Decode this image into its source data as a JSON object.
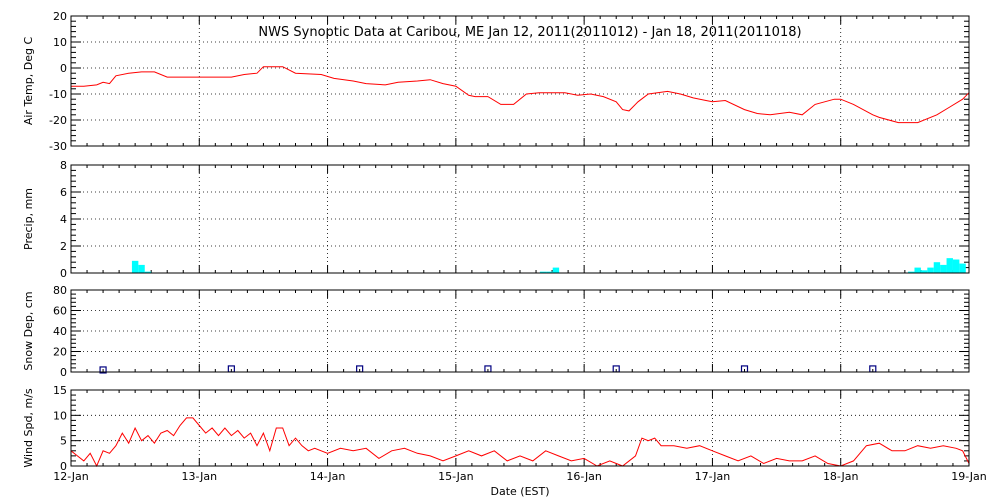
{
  "title": "NWS Synoptic Data at Caribou, ME   Jan 12, 2011(2011012) - Jan 18, 2011(2011018)",
  "xlabel": "Date (EST)",
  "x_ticks": [
    "12-Jan",
    "13-Jan",
    "14-Jan",
    "15-Jan",
    "16-Jan",
    "17-Jan",
    "18-Jan",
    "19-Jan"
  ],
  "colors": {
    "temp": "#ff0000",
    "precip": "#00ffff",
    "snow": "#000080",
    "wind": "#ff0000",
    "grid": "#000000"
  },
  "chart_data": [
    {
      "type": "line",
      "ylabel": "Air Temp, Deg C",
      "ylim": [
        -30,
        20
      ],
      "yticks": [
        -30,
        -20,
        -10,
        0,
        10,
        20
      ],
      "grid": true,
      "series": [
        {
          "x": [
            0,
            0.1,
            0.2,
            0.25,
            0.3,
            0.35,
            0.45,
            0.55,
            0.65,
            0.75,
            0.9,
            1.1,
            1.25,
            1.35,
            1.45,
            1.5,
            1.6,
            1.65,
            1.75,
            1.95,
            2.05,
            2.2,
            2.3,
            2.45,
            2.55,
            2.7,
            2.8,
            2.9,
            3.0,
            3.1,
            3.15,
            3.25,
            3.35,
            3.45,
            3.55,
            3.65,
            3.85,
            3.95,
            4.05,
            4.15,
            4.25,
            4.3,
            4.35,
            4.42,
            4.5,
            4.65,
            4.75,
            4.85,
            4.95,
            5.0,
            5.1,
            5.25,
            5.35,
            5.45,
            5.6,
            5.7,
            5.8,
            5.95,
            6.0,
            6.1,
            6.25,
            6.3,
            6.45,
            6.6,
            6.75,
            6.85,
            6.95,
            7.0
          ],
          "y": [
            -7,
            -7,
            -6.5,
            -5.5,
            -6,
            -3,
            -2,
            -1.5,
            -1.5,
            -3.5,
            -3.5,
            -3.5,
            -3.5,
            -2.5,
            -2,
            0.5,
            0.5,
            0.5,
            -2,
            -2.5,
            -4,
            -5,
            -6,
            -6.5,
            -5.5,
            -5,
            -4.5,
            -6,
            -7,
            -10.5,
            -11,
            -11,
            -14,
            -14,
            -10,
            -9.5,
            -9.5,
            -10.5,
            -10,
            -11,
            -13,
            -16,
            -16.5,
            -13,
            -10,
            -9,
            -10,
            -11.5,
            -12.5,
            -13,
            -12.5,
            -16,
            -17.5,
            -18,
            -17,
            -18,
            -14,
            -12,
            -12,
            -14,
            -18,
            -19,
            -21,
            -21,
            -18,
            -15,
            -12,
            -9.5
          ]
        }
      ]
    },
    {
      "type": "bar",
      "ylabel": "Precip, mm",
      "ylim": [
        0,
        8
      ],
      "yticks": [
        0,
        2,
        4,
        6,
        8
      ],
      "grid": true,
      "series": [
        {
          "x": [
            0.5,
            0.55,
            0.6,
            3.68,
            3.73,
            3.78,
            6.55,
            6.6,
            6.65,
            6.7,
            6.75,
            6.8,
            6.85,
            6.9,
            6.95
          ],
          "values": [
            0.9,
            0.6,
            0.1,
            0.1,
            0.1,
            0.4,
            0.1,
            0.4,
            0.2,
            0.4,
            0.8,
            0.6,
            1.1,
            1.0,
            0.7
          ]
        }
      ]
    },
    {
      "type": "scatter",
      "ylabel": "Snow Dep, cm",
      "ylim": [
        0,
        80
      ],
      "yticks": [
        0,
        20,
        40,
        60,
        80
      ],
      "grid": true,
      "series": [
        {
          "x": [
            0.25,
            1.25,
            2.25,
            3.25,
            4.25,
            5.25,
            6.25
          ],
          "y": [
            2,
            3,
            3,
            3,
            3,
            3,
            3
          ]
        }
      ]
    },
    {
      "type": "line",
      "ylabel": "Wind Spd, m/s",
      "ylim": [
        0,
        15
      ],
      "yticks": [
        0,
        5,
        10,
        15
      ],
      "grid": true,
      "series": [
        {
          "x": [
            0,
            0.05,
            0.1,
            0.15,
            0.2,
            0.25,
            0.3,
            0.35,
            0.4,
            0.45,
            0.5,
            0.55,
            0.6,
            0.65,
            0.7,
            0.75,
            0.8,
            0.85,
            0.9,
            0.95,
            1.0,
            1.05,
            1.1,
            1.15,
            1.2,
            1.25,
            1.3,
            1.35,
            1.4,
            1.45,
            1.5,
            1.55,
            1.6,
            1.65,
            1.7,
            1.75,
            1.8,
            1.85,
            1.9,
            2.0,
            2.1,
            2.2,
            2.3,
            2.4,
            2.5,
            2.6,
            2.7,
            2.8,
            2.9,
            3.0,
            3.1,
            3.2,
            3.3,
            3.4,
            3.5,
            3.6,
            3.7,
            3.8,
            3.9,
            4.0,
            4.1,
            4.2,
            4.3,
            4.4,
            4.45,
            4.5,
            4.55,
            4.6,
            4.7,
            4.8,
            4.9,
            5.0,
            5.1,
            5.2,
            5.3,
            5.4,
            5.5,
            5.6,
            5.7,
            5.8,
            5.9,
            6.0,
            6.1,
            6.2,
            6.3,
            6.4,
            6.5,
            6.6,
            6.7,
            6.8,
            6.9,
            6.95,
            7.0
          ],
          "y": [
            3,
            2,
            1,
            2.5,
            0,
            3,
            2.5,
            4,
            6.5,
            4.5,
            7.5,
            5,
            6,
            4.5,
            6.5,
            7,
            6,
            8,
            9.5,
            9.5,
            8,
            6.5,
            7.5,
            6,
            7.5,
            6,
            7,
            5.5,
            6.5,
            4,
            6.5,
            3,
            7.5,
            7.5,
            4,
            5.5,
            4,
            3,
            3.5,
            2.5,
            3.5,
            3,
            3.5,
            1.5,
            3,
            3.5,
            2.5,
            2,
            1,
            2,
            3,
            2,
            3,
            1,
            2,
            1,
            3,
            2,
            1,
            1.5,
            0,
            1,
            0,
            2,
            5.5,
            5,
            5.5,
            4,
            4,
            3.5,
            4,
            3,
            2,
            1,
            2,
            0.5,
            1.5,
            1,
            1,
            2,
            0.5,
            0,
            1,
            4,
            4.5,
            3,
            3,
            4,
            3.5,
            4,
            3.5,
            3,
            0.5
          ]
        }
      ]
    }
  ]
}
